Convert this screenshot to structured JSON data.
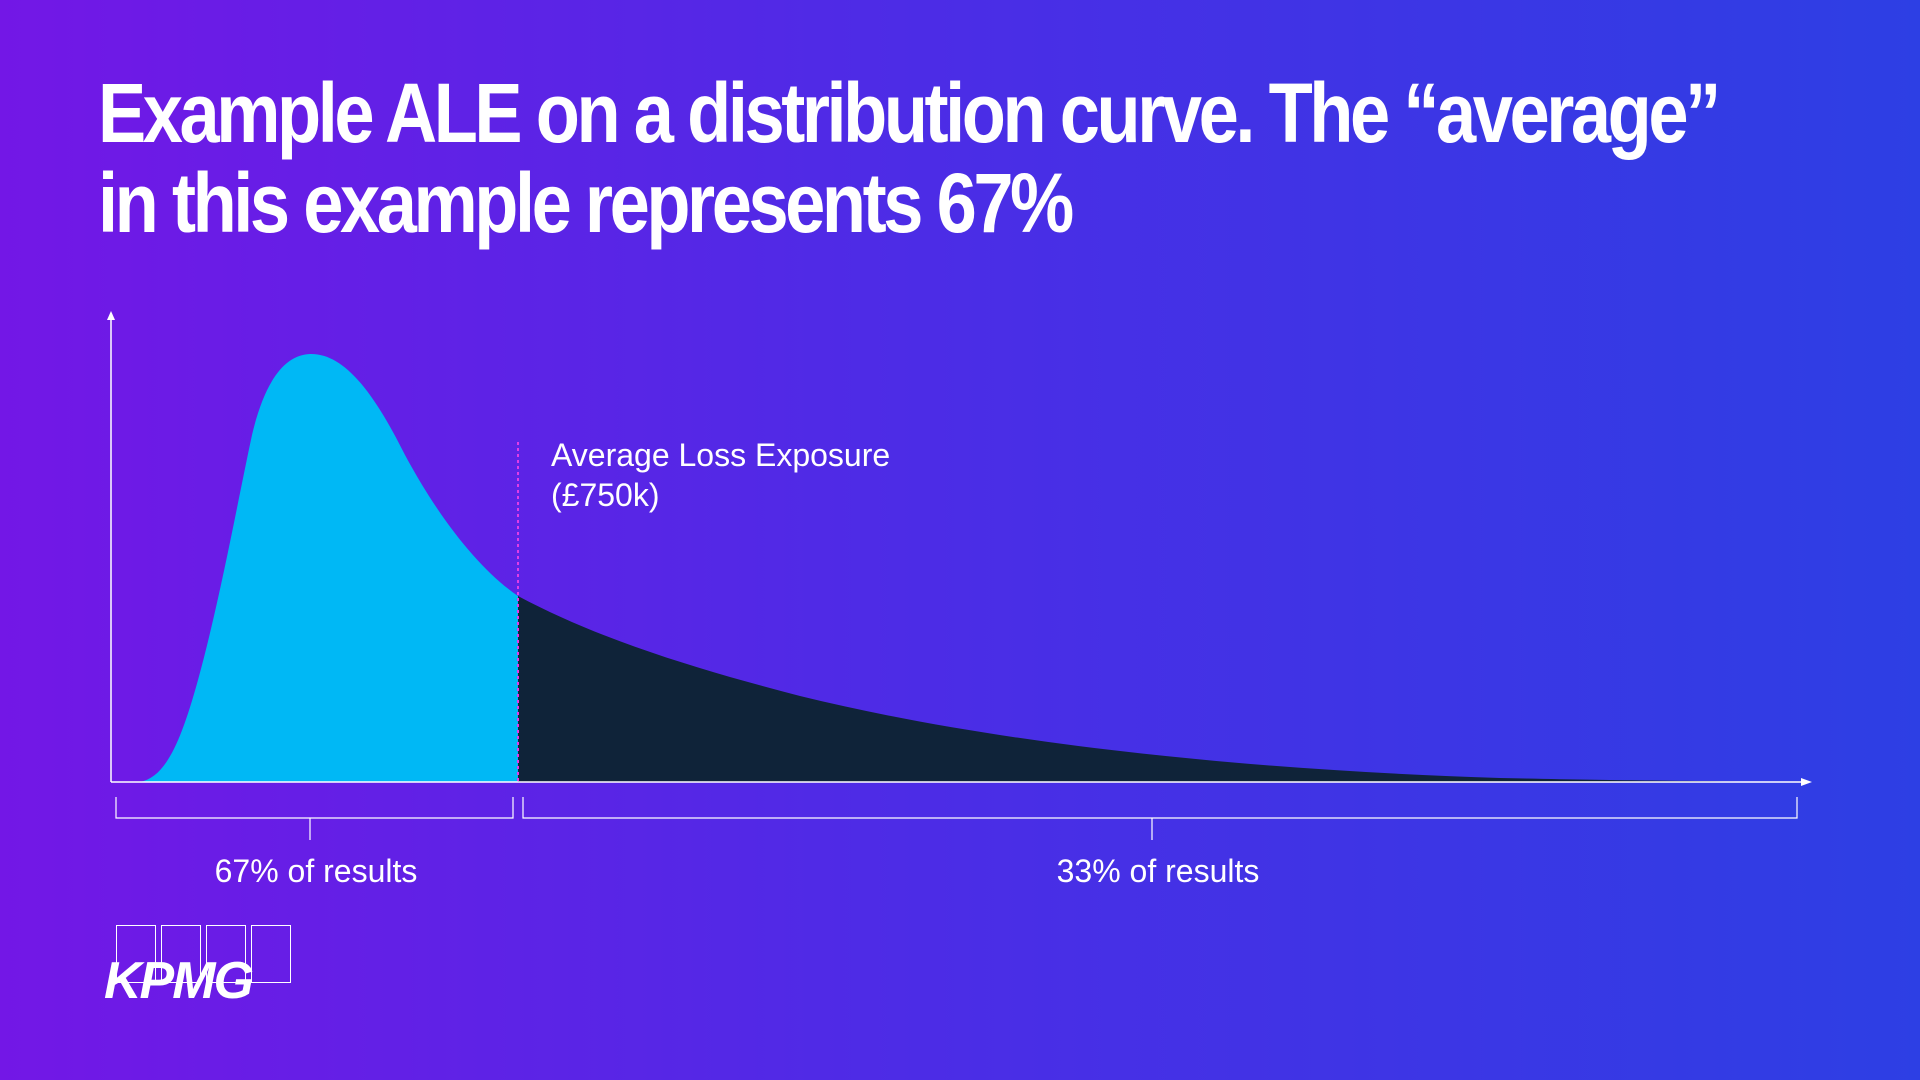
{
  "title": {
    "line1": "Example ALE on a distribution curve. The “average”",
    "line2": "in this example represents 67%"
  },
  "diagram": {
    "average_label": "Average Loss Exposure",
    "average_value": "(£750k)",
    "left_bracket_label": "67% of results",
    "right_bracket_label": "33% of results",
    "left_share_percent": 67,
    "right_share_percent": 33
  },
  "colors": {
    "background_start": "#7317E6",
    "background_end": "#2D3FE4",
    "below_average_fill": "#00B8F5",
    "above_average_fill": "#0F2339",
    "average_marker": "#E03CE8",
    "axis": "#FFFFFF"
  },
  "logo": {
    "text": "KPMG"
  }
}
